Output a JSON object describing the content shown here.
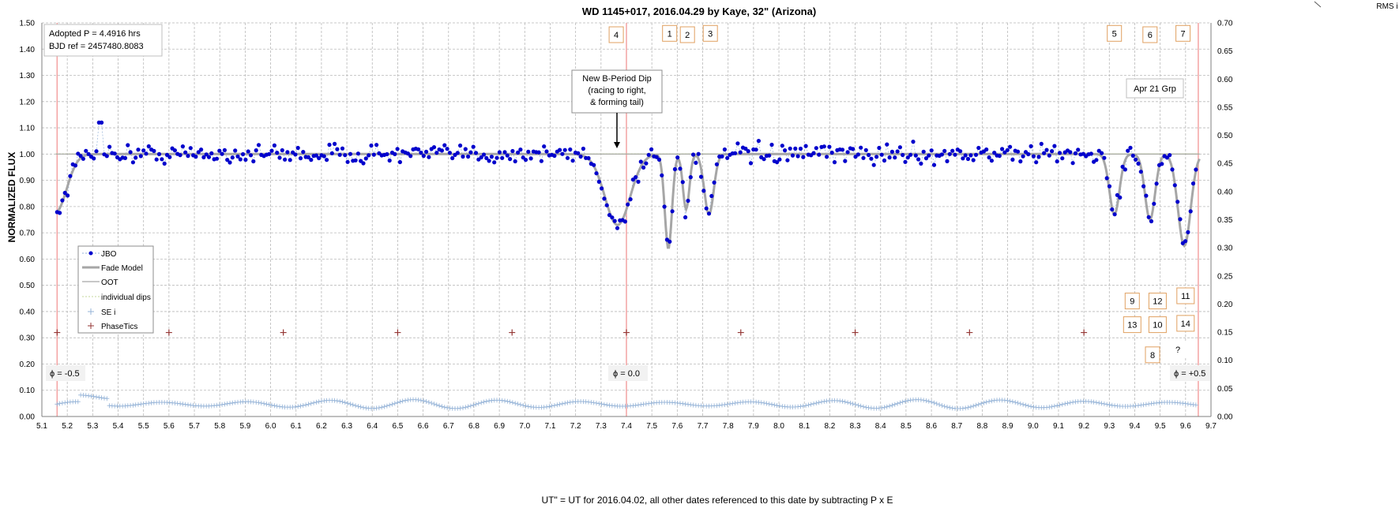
{
  "chart_data": {
    "type": "scatter",
    "title": "WD 1145+017,  2016.04.29  by Kaye, 32\" (Arizona)",
    "xlabel": "UT\"  = UT for 2016.04.02, all other dates referenced  to this date by subtracting  P x E",
    "ylabel": "NORMALIZED FLUX",
    "y2label": "RMS i",
    "xlim": [
      5.1,
      9.7
    ],
    "ylim": [
      0.0,
      1.5
    ],
    "y2lim": [
      0.0,
      0.7
    ],
    "xticks": [
      "5.1",
      "5.2",
      "5.3",
      "5.4",
      "5.5",
      "5.6",
      "5.7",
      "5.8",
      "5.9",
      "6.0",
      "6.1",
      "6.2",
      "6.3",
      "6.4",
      "6.5",
      "6.6",
      "6.7",
      "6.8",
      "6.9",
      "7.0",
      "7.1",
      "7.2",
      "7.3",
      "7.4",
      "7.5",
      "7.6",
      "7.7",
      "7.8",
      "7.9",
      "8.0",
      "8.1",
      "8.2",
      "8.3",
      "8.4",
      "8.5",
      "8.6",
      "8.7",
      "8.8",
      "8.9",
      "9.0",
      "9.1",
      "9.2",
      "9.3",
      "9.4",
      "9.5",
      "9.6",
      "9.7"
    ],
    "yticks": [
      "0.00",
      "0.10",
      "0.20",
      "0.30",
      "0.40",
      "0.50",
      "0.60",
      "0.70",
      "0.80",
      "0.90",
      "1.00",
      "1.10",
      "1.20",
      "1.30",
      "1.40",
      "1.50"
    ],
    "y2ticks": [
      "0.00",
      "0.05",
      "0.10",
      "0.15",
      "0.20",
      "0.25",
      "0.30",
      "0.35",
      "0.40",
      "0.45",
      "0.50",
      "0.55",
      "0.60",
      "0.65",
      "0.70"
    ],
    "grid": true,
    "legend_position": "lower-left",
    "legend": [
      {
        "label": "JBO",
        "style": "dots",
        "color": "#0000cc"
      },
      {
        "label": "Fade Model",
        "style": "line",
        "color": "#a6a6a6"
      },
      {
        "label": "OOT",
        "style": "line",
        "color": "#a6a6a6"
      },
      {
        "label": "individual dips",
        "style": "dotted",
        "color": "#c4d79b"
      },
      {
        "label": "SE i",
        "style": "cross",
        "color": "#95b3d7"
      },
      {
        "label": "PhaseTics",
        "style": "cross",
        "color": "#953735"
      }
    ],
    "annotations": {
      "adopted_period": "Adopted P = 4.4916  hrs",
      "bjd_ref": "BJD ref = 2457480.8083",
      "dip_note": [
        "New B-Period Dip",
        "(racing to right,",
        "& forming tail)"
      ],
      "group_label": "Apr 21 Grp",
      "phase_minus": "ϕ = -0.5",
      "phase_zero": "ϕ = 0.0",
      "phase_plus": "ϕ = +0.5",
      "question": "?"
    },
    "dip_labels": [
      {
        "label": "4",
        "x": 7.36,
        "y": 1.455
      },
      {
        "label": "1",
        "x": 7.57,
        "y": 1.46
      },
      {
        "label": "2",
        "x": 7.64,
        "y": 1.455
      },
      {
        "label": "3",
        "x": 7.73,
        "y": 1.46
      },
      {
        "label": "5",
        "x": 9.32,
        "y": 1.46
      },
      {
        "label": "6",
        "x": 9.46,
        "y": 1.455
      },
      {
        "label": "7",
        "x": 9.59,
        "y": 1.46
      },
      {
        "label": "9",
        "x": 9.39,
        "y": 0.44
      },
      {
        "label": "12",
        "x": 9.49,
        "y": 0.44
      },
      {
        "label": "11",
        "x": 9.6,
        "y": 0.46
      },
      {
        "label": "13",
        "x": 9.39,
        "y": 0.35
      },
      {
        "label": "10",
        "x": 9.49,
        "y": 0.35
      },
      {
        "label": "14",
        "x": 9.6,
        "y": 0.355
      },
      {
        "label": "8",
        "x": 9.47,
        "y": 0.235
      }
    ],
    "vertical_lines_x": [
      5.16,
      7.4,
      9.65
    ],
    "phase_tics": {
      "x": [
        5.16,
        5.6,
        6.05,
        6.5,
        6.95,
        7.4,
        7.85,
        8.3,
        8.75,
        9.2
      ],
      "y": 0.32
    },
    "fade_model": {
      "baseline": 1.0,
      "dips": [
        {
          "center": 5.155,
          "depth": 0.22,
          "width": 0.06
        },
        {
          "center": 7.365,
          "depth": 0.27,
          "width": 0.07
        },
        {
          "center": 7.565,
          "depth": 0.36,
          "width": 0.02
        },
        {
          "center": 7.635,
          "depth": 0.21,
          "width": 0.018
        },
        {
          "center": 7.725,
          "depth": 0.23,
          "width": 0.026
        },
        {
          "center": 9.32,
          "depth": 0.23,
          "width": 0.028
        },
        {
          "center": 9.46,
          "depth": 0.25,
          "width": 0.028
        },
        {
          "center": 9.595,
          "depth": 0.35,
          "width": 0.035
        }
      ]
    },
    "rms": {
      "mean": 0.022,
      "amplitude": 0.008,
      "cycle": 0.33
    }
  }
}
